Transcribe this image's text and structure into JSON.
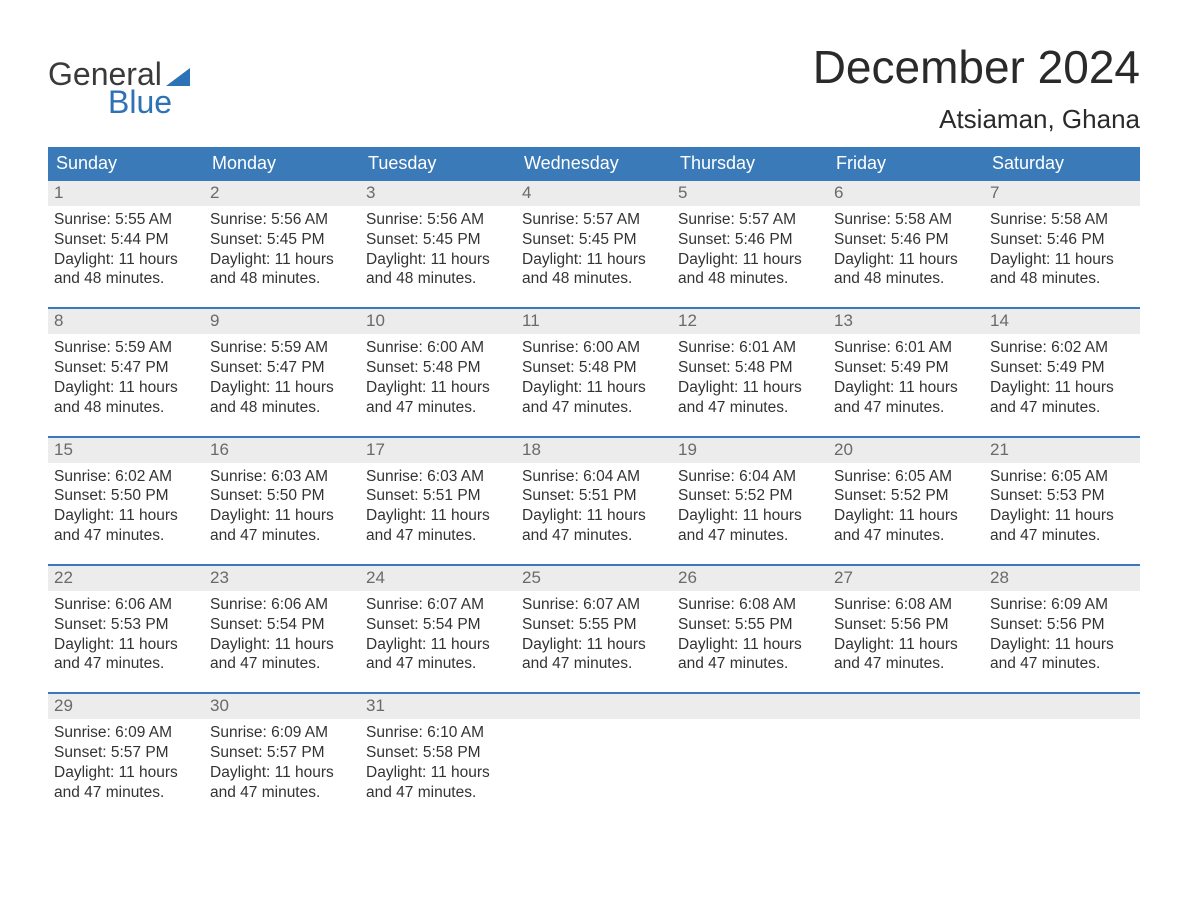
{
  "brand": {
    "line1": "General",
    "line2": "Blue",
    "accent_color": "#2d72b6"
  },
  "title": "December 2024",
  "location": "Atsiaman, Ghana",
  "colors": {
    "header_bg": "#3b7ab8",
    "header_text": "#ffffff",
    "daynum_bg": "#ececec",
    "daynum_text": "#6a6a6a",
    "body_text": "#333333",
    "week_border": "#3b7ab8",
    "page_bg": "#ffffff"
  },
  "typography": {
    "title_fontsize": 46,
    "location_fontsize": 26,
    "weekday_fontsize": 18,
    "daynum_fontsize": 17,
    "body_fontsize": 15.5,
    "font_family": "Arial"
  },
  "layout": {
    "columns": 7,
    "rows": 5,
    "first_day_column": 0
  },
  "weekdays": [
    "Sunday",
    "Monday",
    "Tuesday",
    "Wednesday",
    "Thursday",
    "Friday",
    "Saturday"
  ],
  "labels": {
    "sunrise": "Sunrise",
    "sunset": "Sunset",
    "daylight": "Daylight"
  },
  "days": [
    {
      "n": 1,
      "sunrise": "5:55 AM",
      "sunset": "5:44 PM",
      "daylight": "11 hours and 48 minutes."
    },
    {
      "n": 2,
      "sunrise": "5:56 AM",
      "sunset": "5:45 PM",
      "daylight": "11 hours and 48 minutes."
    },
    {
      "n": 3,
      "sunrise": "5:56 AM",
      "sunset": "5:45 PM",
      "daylight": "11 hours and 48 minutes."
    },
    {
      "n": 4,
      "sunrise": "5:57 AM",
      "sunset": "5:45 PM",
      "daylight": "11 hours and 48 minutes."
    },
    {
      "n": 5,
      "sunrise": "5:57 AM",
      "sunset": "5:46 PM",
      "daylight": "11 hours and 48 minutes."
    },
    {
      "n": 6,
      "sunrise": "5:58 AM",
      "sunset": "5:46 PM",
      "daylight": "11 hours and 48 minutes."
    },
    {
      "n": 7,
      "sunrise": "5:58 AM",
      "sunset": "5:46 PM",
      "daylight": "11 hours and 48 minutes."
    },
    {
      "n": 8,
      "sunrise": "5:59 AM",
      "sunset": "5:47 PM",
      "daylight": "11 hours and 48 minutes."
    },
    {
      "n": 9,
      "sunrise": "5:59 AM",
      "sunset": "5:47 PM",
      "daylight": "11 hours and 48 minutes."
    },
    {
      "n": 10,
      "sunrise": "6:00 AM",
      "sunset": "5:48 PM",
      "daylight": "11 hours and 47 minutes."
    },
    {
      "n": 11,
      "sunrise": "6:00 AM",
      "sunset": "5:48 PM",
      "daylight": "11 hours and 47 minutes."
    },
    {
      "n": 12,
      "sunrise": "6:01 AM",
      "sunset": "5:48 PM",
      "daylight": "11 hours and 47 minutes."
    },
    {
      "n": 13,
      "sunrise": "6:01 AM",
      "sunset": "5:49 PM",
      "daylight": "11 hours and 47 minutes."
    },
    {
      "n": 14,
      "sunrise": "6:02 AM",
      "sunset": "5:49 PM",
      "daylight": "11 hours and 47 minutes."
    },
    {
      "n": 15,
      "sunrise": "6:02 AM",
      "sunset": "5:50 PM",
      "daylight": "11 hours and 47 minutes."
    },
    {
      "n": 16,
      "sunrise": "6:03 AM",
      "sunset": "5:50 PM",
      "daylight": "11 hours and 47 minutes."
    },
    {
      "n": 17,
      "sunrise": "6:03 AM",
      "sunset": "5:51 PM",
      "daylight": "11 hours and 47 minutes."
    },
    {
      "n": 18,
      "sunrise": "6:04 AM",
      "sunset": "5:51 PM",
      "daylight": "11 hours and 47 minutes."
    },
    {
      "n": 19,
      "sunrise": "6:04 AM",
      "sunset": "5:52 PM",
      "daylight": "11 hours and 47 minutes."
    },
    {
      "n": 20,
      "sunrise": "6:05 AM",
      "sunset": "5:52 PM",
      "daylight": "11 hours and 47 minutes."
    },
    {
      "n": 21,
      "sunrise": "6:05 AM",
      "sunset": "5:53 PM",
      "daylight": "11 hours and 47 minutes."
    },
    {
      "n": 22,
      "sunrise": "6:06 AM",
      "sunset": "5:53 PM",
      "daylight": "11 hours and 47 minutes."
    },
    {
      "n": 23,
      "sunrise": "6:06 AM",
      "sunset": "5:54 PM",
      "daylight": "11 hours and 47 minutes."
    },
    {
      "n": 24,
      "sunrise": "6:07 AM",
      "sunset": "5:54 PM",
      "daylight": "11 hours and 47 minutes."
    },
    {
      "n": 25,
      "sunrise": "6:07 AM",
      "sunset": "5:55 PM",
      "daylight": "11 hours and 47 minutes."
    },
    {
      "n": 26,
      "sunrise": "6:08 AM",
      "sunset": "5:55 PM",
      "daylight": "11 hours and 47 minutes."
    },
    {
      "n": 27,
      "sunrise": "6:08 AM",
      "sunset": "5:56 PM",
      "daylight": "11 hours and 47 minutes."
    },
    {
      "n": 28,
      "sunrise": "6:09 AM",
      "sunset": "5:56 PM",
      "daylight": "11 hours and 47 minutes."
    },
    {
      "n": 29,
      "sunrise": "6:09 AM",
      "sunset": "5:57 PM",
      "daylight": "11 hours and 47 minutes."
    },
    {
      "n": 30,
      "sunrise": "6:09 AM",
      "sunset": "5:57 PM",
      "daylight": "11 hours and 47 minutes."
    },
    {
      "n": 31,
      "sunrise": "6:10 AM",
      "sunset": "5:58 PM",
      "daylight": "11 hours and 47 minutes."
    }
  ]
}
